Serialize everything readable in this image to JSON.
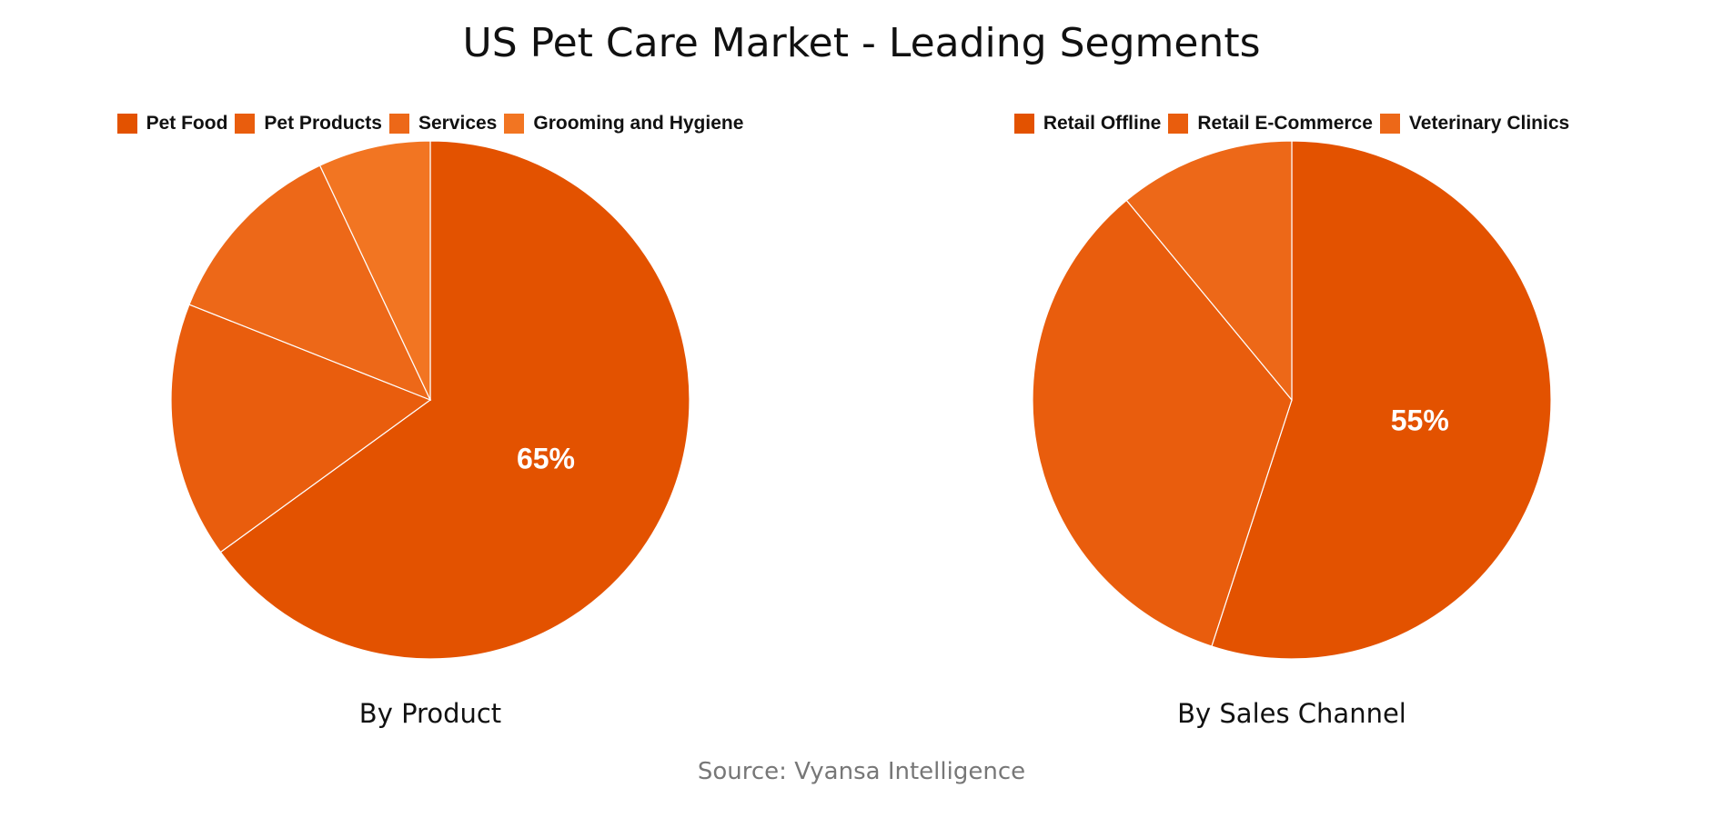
{
  "title": "US Pet Care Market - Leading Segments",
  "source": "Source: Vyansa Intelligence",
  "chart_data": [
    {
      "type": "pie",
      "title": "By Product",
      "legend_position": "top",
      "categories": [
        "Pet Food",
        "Pet Products",
        "Services",
        "Grooming and Hygiene"
      ],
      "values": [
        65,
        16,
        12,
        7
      ],
      "colors": [
        "#E35200",
        "#E95D0D",
        "#ED6818",
        "#F27522"
      ],
      "data_labels": [
        "65%",
        "",
        "",
        ""
      ]
    },
    {
      "type": "pie",
      "title": "By Sales Channel",
      "legend_position": "top",
      "categories": [
        "Retail Offline",
        "Retail E-Commerce",
        "Veterinary Clinics"
      ],
      "values": [
        55,
        34,
        11
      ],
      "colors": [
        "#E35200",
        "#E95D0D",
        "#ED6818"
      ],
      "data_labels": [
        "55%",
        "",
        ""
      ]
    }
  ]
}
